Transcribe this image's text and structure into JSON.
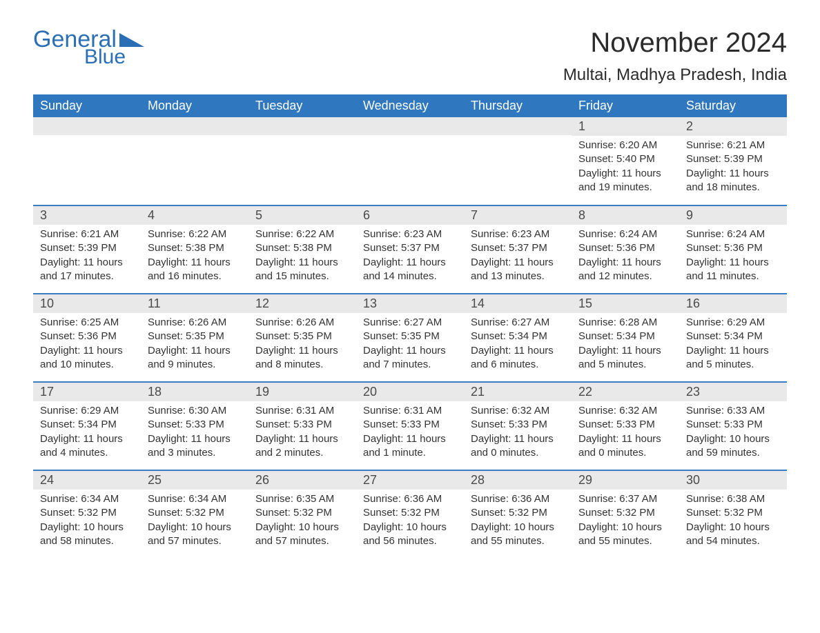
{
  "logo": {
    "word1": "General",
    "word2": "Blue"
  },
  "title": "November 2024",
  "location": "Multai, Madhya Pradesh, India",
  "colors": {
    "header_bg": "#2f78bf",
    "header_text": "#ffffff",
    "row_border": "#3a7fc3",
    "daynum_bg": "#e9e9e9",
    "text": "#333333",
    "logo": "#2a6fb5",
    "background": "#ffffff"
  },
  "typography": {
    "title_fontsize": 40,
    "location_fontsize": 24,
    "dow_fontsize": 18,
    "daynum_fontsize": 18,
    "body_fontsize": 15
  },
  "days_of_week": [
    "Sunday",
    "Monday",
    "Tuesday",
    "Wednesday",
    "Thursday",
    "Friday",
    "Saturday"
  ],
  "weeks": [
    [
      null,
      null,
      null,
      null,
      null,
      {
        "n": "1",
        "sunrise": "Sunrise: 6:20 AM",
        "sunset": "Sunset: 5:40 PM",
        "daylight": "Daylight: 11 hours and 19 minutes."
      },
      {
        "n": "2",
        "sunrise": "Sunrise: 6:21 AM",
        "sunset": "Sunset: 5:39 PM",
        "daylight": "Daylight: 11 hours and 18 minutes."
      }
    ],
    [
      {
        "n": "3",
        "sunrise": "Sunrise: 6:21 AM",
        "sunset": "Sunset: 5:39 PM",
        "daylight": "Daylight: 11 hours and 17 minutes."
      },
      {
        "n": "4",
        "sunrise": "Sunrise: 6:22 AM",
        "sunset": "Sunset: 5:38 PM",
        "daylight": "Daylight: 11 hours and 16 minutes."
      },
      {
        "n": "5",
        "sunrise": "Sunrise: 6:22 AM",
        "sunset": "Sunset: 5:38 PM",
        "daylight": "Daylight: 11 hours and 15 minutes."
      },
      {
        "n": "6",
        "sunrise": "Sunrise: 6:23 AM",
        "sunset": "Sunset: 5:37 PM",
        "daylight": "Daylight: 11 hours and 14 minutes."
      },
      {
        "n": "7",
        "sunrise": "Sunrise: 6:23 AM",
        "sunset": "Sunset: 5:37 PM",
        "daylight": "Daylight: 11 hours and 13 minutes."
      },
      {
        "n": "8",
        "sunrise": "Sunrise: 6:24 AM",
        "sunset": "Sunset: 5:36 PM",
        "daylight": "Daylight: 11 hours and 12 minutes."
      },
      {
        "n": "9",
        "sunrise": "Sunrise: 6:24 AM",
        "sunset": "Sunset: 5:36 PM",
        "daylight": "Daylight: 11 hours and 11 minutes."
      }
    ],
    [
      {
        "n": "10",
        "sunrise": "Sunrise: 6:25 AM",
        "sunset": "Sunset: 5:36 PM",
        "daylight": "Daylight: 11 hours and 10 minutes."
      },
      {
        "n": "11",
        "sunrise": "Sunrise: 6:26 AM",
        "sunset": "Sunset: 5:35 PM",
        "daylight": "Daylight: 11 hours and 9 minutes."
      },
      {
        "n": "12",
        "sunrise": "Sunrise: 6:26 AM",
        "sunset": "Sunset: 5:35 PM",
        "daylight": "Daylight: 11 hours and 8 minutes."
      },
      {
        "n": "13",
        "sunrise": "Sunrise: 6:27 AM",
        "sunset": "Sunset: 5:35 PM",
        "daylight": "Daylight: 11 hours and 7 minutes."
      },
      {
        "n": "14",
        "sunrise": "Sunrise: 6:27 AM",
        "sunset": "Sunset: 5:34 PM",
        "daylight": "Daylight: 11 hours and 6 minutes."
      },
      {
        "n": "15",
        "sunrise": "Sunrise: 6:28 AM",
        "sunset": "Sunset: 5:34 PM",
        "daylight": "Daylight: 11 hours and 5 minutes."
      },
      {
        "n": "16",
        "sunrise": "Sunrise: 6:29 AM",
        "sunset": "Sunset: 5:34 PM",
        "daylight": "Daylight: 11 hours and 5 minutes."
      }
    ],
    [
      {
        "n": "17",
        "sunrise": "Sunrise: 6:29 AM",
        "sunset": "Sunset: 5:34 PM",
        "daylight": "Daylight: 11 hours and 4 minutes."
      },
      {
        "n": "18",
        "sunrise": "Sunrise: 6:30 AM",
        "sunset": "Sunset: 5:33 PM",
        "daylight": "Daylight: 11 hours and 3 minutes."
      },
      {
        "n": "19",
        "sunrise": "Sunrise: 6:31 AM",
        "sunset": "Sunset: 5:33 PM",
        "daylight": "Daylight: 11 hours and 2 minutes."
      },
      {
        "n": "20",
        "sunrise": "Sunrise: 6:31 AM",
        "sunset": "Sunset: 5:33 PM",
        "daylight": "Daylight: 11 hours and 1 minute."
      },
      {
        "n": "21",
        "sunrise": "Sunrise: 6:32 AM",
        "sunset": "Sunset: 5:33 PM",
        "daylight": "Daylight: 11 hours and 0 minutes."
      },
      {
        "n": "22",
        "sunrise": "Sunrise: 6:32 AM",
        "sunset": "Sunset: 5:33 PM",
        "daylight": "Daylight: 11 hours and 0 minutes."
      },
      {
        "n": "23",
        "sunrise": "Sunrise: 6:33 AM",
        "sunset": "Sunset: 5:33 PM",
        "daylight": "Daylight: 10 hours and 59 minutes."
      }
    ],
    [
      {
        "n": "24",
        "sunrise": "Sunrise: 6:34 AM",
        "sunset": "Sunset: 5:32 PM",
        "daylight": "Daylight: 10 hours and 58 minutes."
      },
      {
        "n": "25",
        "sunrise": "Sunrise: 6:34 AM",
        "sunset": "Sunset: 5:32 PM",
        "daylight": "Daylight: 10 hours and 57 minutes."
      },
      {
        "n": "26",
        "sunrise": "Sunrise: 6:35 AM",
        "sunset": "Sunset: 5:32 PM",
        "daylight": "Daylight: 10 hours and 57 minutes."
      },
      {
        "n": "27",
        "sunrise": "Sunrise: 6:36 AM",
        "sunset": "Sunset: 5:32 PM",
        "daylight": "Daylight: 10 hours and 56 minutes."
      },
      {
        "n": "28",
        "sunrise": "Sunrise: 6:36 AM",
        "sunset": "Sunset: 5:32 PM",
        "daylight": "Daylight: 10 hours and 55 minutes."
      },
      {
        "n": "29",
        "sunrise": "Sunrise: 6:37 AM",
        "sunset": "Sunset: 5:32 PM",
        "daylight": "Daylight: 10 hours and 55 minutes."
      },
      {
        "n": "30",
        "sunrise": "Sunrise: 6:38 AM",
        "sunset": "Sunset: 5:32 PM",
        "daylight": "Daylight: 10 hours and 54 minutes."
      }
    ]
  ]
}
